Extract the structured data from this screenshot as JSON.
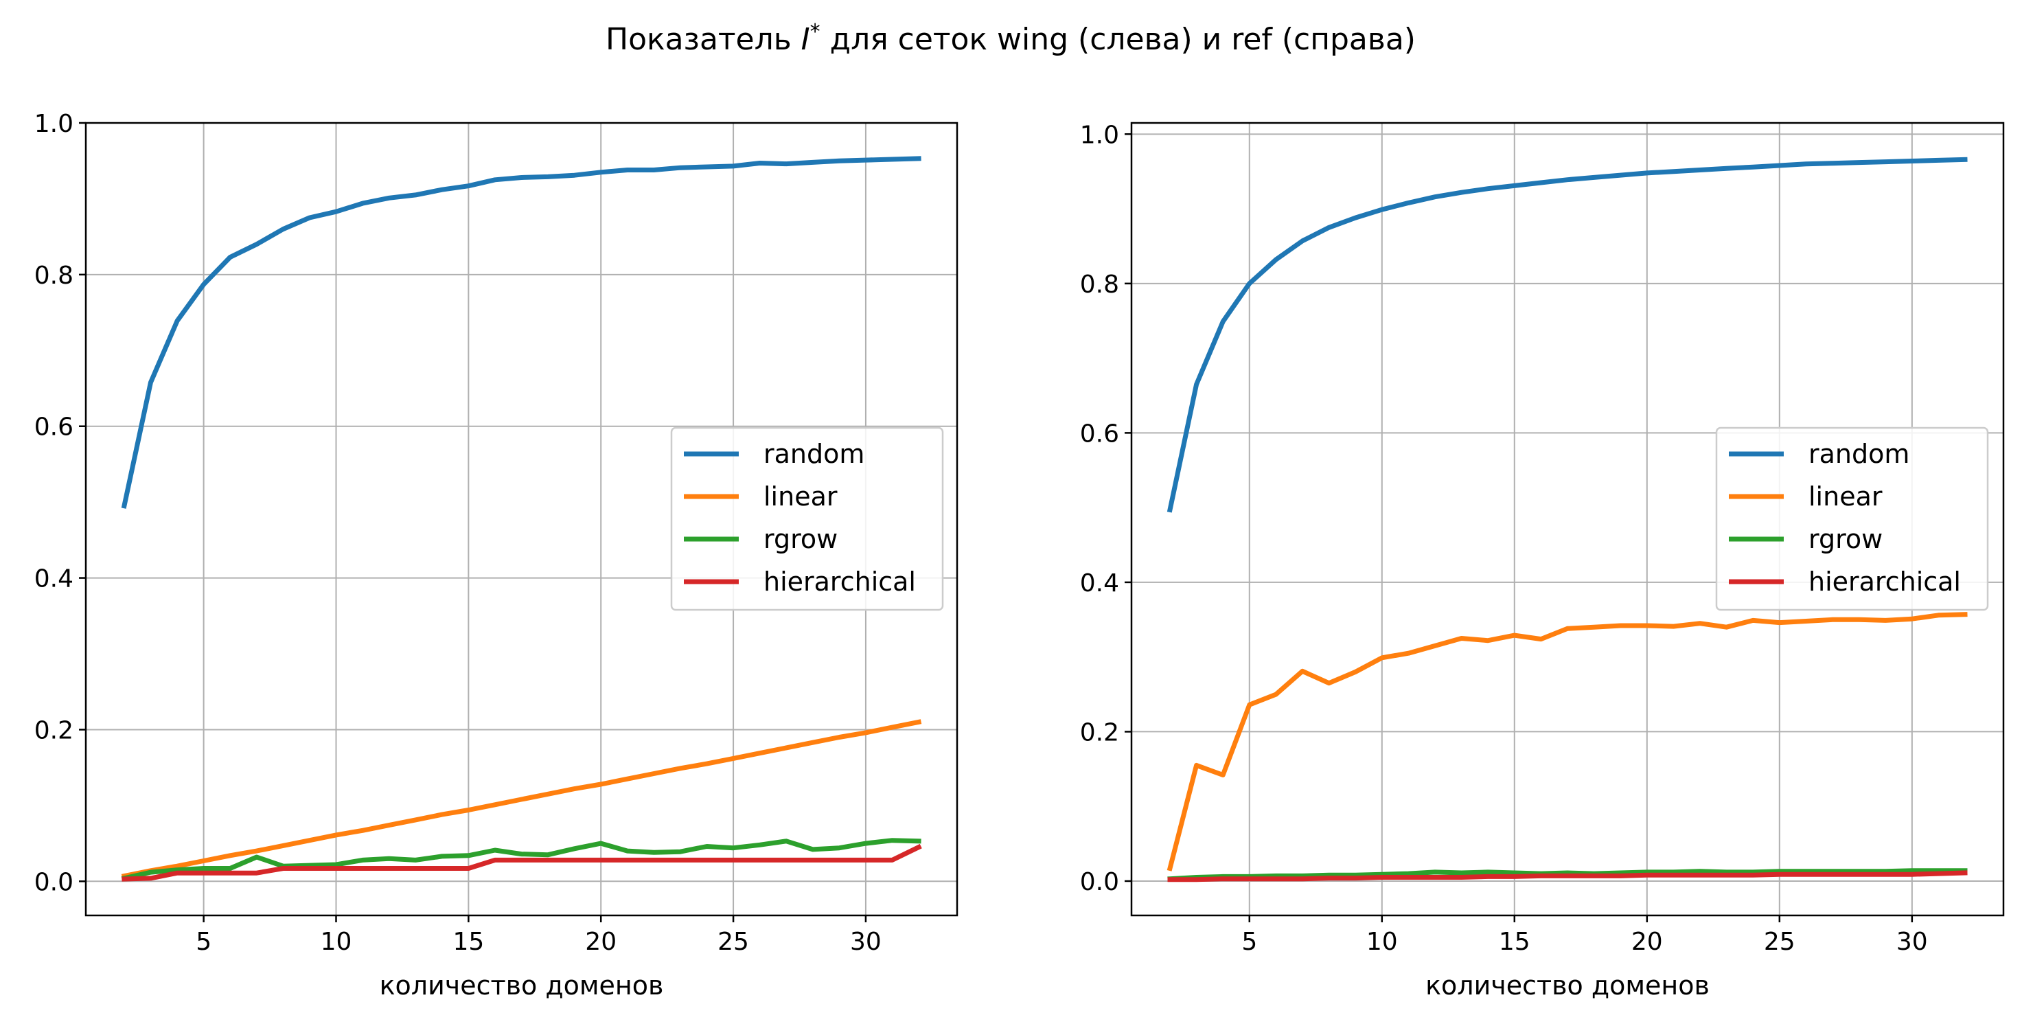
{
  "title": {
    "prefix": "Показатель ",
    "symbol": "I",
    "superscript": "*",
    "suffix": " для сеток wing (слева) и ref (справа)"
  },
  "chart_data": [
    {
      "type": "line",
      "xlabel": "количество доменов",
      "ylabel": "",
      "xlim": [
        0.55,
        33.45
      ],
      "ylim": [
        -0.045,
        1.0
      ],
      "xticks": [
        5,
        10,
        15,
        20,
        25,
        30
      ],
      "yticks": [
        0.0,
        0.2,
        0.4,
        0.6,
        0.8,
        1.0
      ],
      "grid": true,
      "legend_position": "center-right",
      "x": [
        2,
        3,
        4,
        5,
        6,
        7,
        8,
        9,
        10,
        11,
        12,
        13,
        14,
        15,
        16,
        17,
        18,
        19,
        20,
        21,
        22,
        23,
        24,
        25,
        26,
        27,
        28,
        29,
        30,
        31,
        32
      ],
      "series": [
        {
          "name": "random",
          "color": "#1f77b4",
          "values": [
            0.495,
            0.658,
            0.739,
            0.787,
            0.823,
            0.84,
            0.86,
            0.875,
            0.883,
            0.894,
            0.901,
            0.905,
            0.912,
            0.917,
            0.925,
            0.928,
            0.929,
            0.931,
            0.935,
            0.938,
            0.938,
            0.941,
            0.942,
            0.943,
            0.947,
            0.946,
            0.948,
            0.95,
            0.951,
            0.952,
            0.953
          ]
        },
        {
          "name": "linear",
          "color": "#ff7f0e",
          "values": [
            0.007,
            0.014,
            0.02,
            0.027,
            0.034,
            0.04,
            0.047,
            0.054,
            0.061,
            0.067,
            0.074,
            0.081,
            0.088,
            0.094,
            0.101,
            0.108,
            0.115,
            0.122,
            0.128,
            0.135,
            0.142,
            0.149,
            0.155,
            0.162,
            0.169,
            0.176,
            0.183,
            0.19,
            0.196,
            0.203,
            0.21
          ]
        },
        {
          "name": "rgrow",
          "color": "#2ca02c",
          "values": [
            0.004,
            0.012,
            0.015,
            0.017,
            0.017,
            0.032,
            0.02,
            0.021,
            0.022,
            0.028,
            0.03,
            0.028,
            0.033,
            0.034,
            0.041,
            0.036,
            0.035,
            0.043,
            0.05,
            0.04,
            0.038,
            0.039,
            0.046,
            0.044,
            0.048,
            0.053,
            0.042,
            0.044,
            0.05,
            0.054,
            0.053
          ]
        },
        {
          "name": "hierarchical",
          "color": "#d62728",
          "values": [
            0.003,
            0.004,
            0.011,
            0.011,
            0.011,
            0.011,
            0.017,
            0.017,
            0.017,
            0.017,
            0.017,
            0.017,
            0.017,
            0.017,
            0.028,
            0.028,
            0.028,
            0.028,
            0.028,
            0.028,
            0.028,
            0.028,
            0.028,
            0.028,
            0.028,
            0.028,
            0.028,
            0.028,
            0.028,
            0.028,
            0.045
          ]
        }
      ]
    },
    {
      "type": "line",
      "xlabel": "количество доменов",
      "ylabel": "",
      "xlim": [
        0.55,
        33.45
      ],
      "ylim": [
        -0.046,
        1.015
      ],
      "xticks": [
        5,
        10,
        15,
        20,
        25,
        30
      ],
      "yticks": [
        0.0,
        0.2,
        0.4,
        0.6,
        0.8,
        1.0
      ],
      "grid": true,
      "legend_position": "center-right",
      "x": [
        2,
        3,
        4,
        5,
        6,
        7,
        8,
        9,
        10,
        11,
        12,
        13,
        14,
        15,
        16,
        17,
        18,
        19,
        20,
        21,
        22,
        23,
        24,
        25,
        26,
        27,
        28,
        29,
        30,
        31,
        32
      ],
      "series": [
        {
          "name": "random",
          "color": "#1f77b4",
          "values": [
            0.497,
            0.665,
            0.749,
            0.8,
            0.832,
            0.857,
            0.875,
            0.888,
            0.899,
            0.908,
            0.916,
            0.922,
            0.927,
            0.931,
            0.935,
            0.939,
            0.942,
            0.945,
            0.948,
            0.95,
            0.952,
            0.954,
            0.956,
            0.958,
            0.96,
            0.961,
            0.962,
            0.963,
            0.964,
            0.965,
            0.966
          ]
        },
        {
          "name": "linear",
          "color": "#ff7f0e",
          "values": [
            0.017,
            0.155,
            0.142,
            0.236,
            0.25,
            0.281,
            0.265,
            0.28,
            0.299,
            0.305,
            0.315,
            0.325,
            0.322,
            0.329,
            0.324,
            0.338,
            0.34,
            0.342,
            0.342,
            0.341,
            0.345,
            0.34,
            0.349,
            0.346,
            0.348,
            0.35,
            0.35,
            0.349,
            0.351,
            0.356,
            0.357
          ]
        },
        {
          "name": "rgrow",
          "color": "#2ca02c",
          "values": [
            0.003,
            0.005,
            0.006,
            0.006,
            0.007,
            0.007,
            0.008,
            0.008,
            0.009,
            0.01,
            0.012,
            0.011,
            0.012,
            0.011,
            0.01,
            0.011,
            0.01,
            0.011,
            0.012,
            0.012,
            0.013,
            0.012,
            0.012,
            0.013,
            0.013,
            0.013,
            0.013,
            0.013,
            0.014,
            0.014,
            0.014
          ]
        },
        {
          "name": "hierarchical",
          "color": "#d62728",
          "values": [
            0.002,
            0.002,
            0.003,
            0.003,
            0.003,
            0.003,
            0.004,
            0.004,
            0.005,
            0.005,
            0.005,
            0.005,
            0.006,
            0.006,
            0.007,
            0.007,
            0.007,
            0.007,
            0.008,
            0.008,
            0.008,
            0.008,
            0.008,
            0.009,
            0.009,
            0.009,
            0.009,
            0.009,
            0.009,
            0.01,
            0.011
          ]
        }
      ]
    }
  ]
}
